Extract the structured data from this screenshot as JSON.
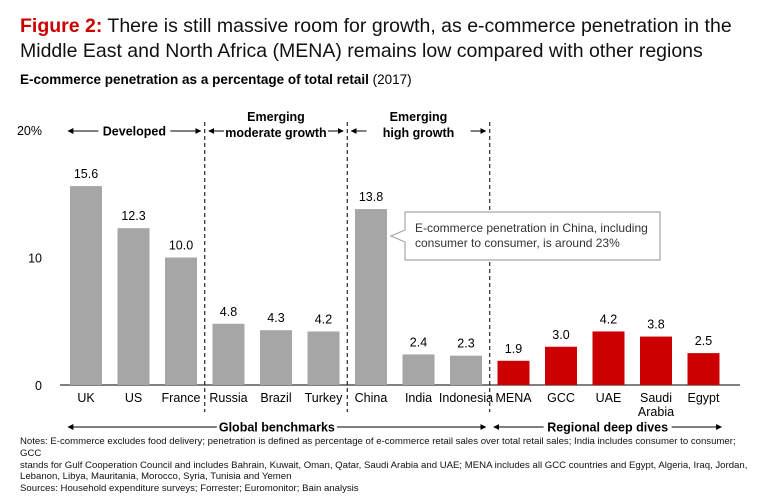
{
  "figure": {
    "label": "Figure 2:",
    "title": "There is still massive room for growth, as e-commerce penetration in the Middle East and North Africa (MENA) remains low compared with other regions",
    "subtitle_bold": "E-commerce penetration as a percentage of total retail",
    "subtitle_year": "(2017)"
  },
  "chart_data": {
    "type": "bar",
    "ylim": [
      0,
      20
    ],
    "yticks": [
      0,
      10,
      20
    ],
    "ytick_labels": [
      "0",
      "10",
      "20%"
    ],
    "categories": [
      "UK",
      "US",
      "France",
      "Russia",
      "Brazil",
      "Turkey",
      "China",
      "India",
      "Indonesia",
      "MENA",
      "GCC",
      "UAE",
      "Saudi Arabia",
      "Egypt"
    ],
    "values": [
      15.6,
      12.3,
      10.0,
      4.8,
      4.3,
      4.2,
      13.8,
      2.4,
      2.3,
      1.9,
      3.0,
      4.2,
      3.8,
      2.5
    ],
    "value_labels": [
      "15.6",
      "12.3",
      "10.0",
      "4.8",
      "4.3",
      "4.2",
      "13.8",
      "2.4",
      "2.3",
      "1.9",
      "3.0",
      "4.2",
      "3.8",
      "2.5"
    ],
    "groups": [
      {
        "label": [
          "Developed"
        ],
        "start": 0,
        "end": 2
      },
      {
        "label": [
          "Emerging",
          "moderate growth"
        ],
        "start": 3,
        "end": 5
      },
      {
        "label": [
          "Emerging",
          "high growth"
        ],
        "start": 6,
        "end": 8
      }
    ],
    "super_groups": [
      {
        "label": "Global benchmarks",
        "start": 0,
        "end": 8
      },
      {
        "label": "Regional deep dives",
        "start": 9,
        "end": 13
      }
    ],
    "highlight_start_index": 9,
    "colors": {
      "benchmark": "#a6a6a6",
      "regional": "#cc0000",
      "callout_border": "#a6a6a6"
    },
    "annotation": {
      "bar_index": 6,
      "text": [
        "E-commerce penetration in China, including",
        "consumer to consumer, is around 23%"
      ]
    }
  },
  "notes": {
    "line1": "Notes: E-commerce excludes food delivery; penetration is defined as percentage of e-commerce retail sales over total retail sales; India includes consumer to consumer; GCC",
    "line2": "stands for Gulf Cooperation Council and includes Bahrain, Kuwait, Oman, Qatar, Saudi Arabia and UAE; MENA includes all GCC countries and Egypt, Algeria, Iraq, Jordan,",
    "line3": "Lebanon, Libya, Mauritania, Morocco, Syria, Tunisia and Yemen",
    "sources": "Sources: Household expenditure surveys; Forrester; Euromonitor; Bain analysis"
  }
}
